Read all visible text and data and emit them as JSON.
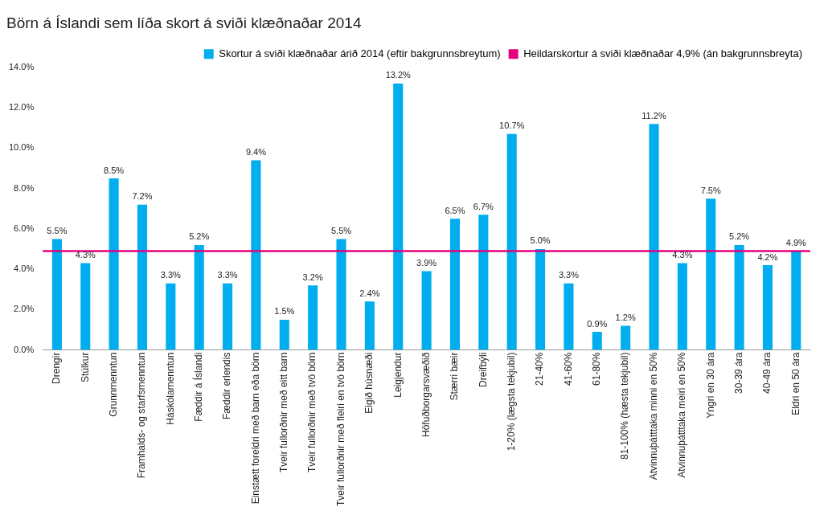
{
  "chart_data": {
    "type": "bar",
    "title": "Börn á Íslandi sem líða skort á sviði klæðnaðar 2014",
    "categories": [
      "Drengir",
      "Stúlkur",
      "Grunnmenntun",
      "Framhalds- og starfsmenntun",
      "Háskólamenntun",
      "Fæddir á Íslandi",
      "Fæddir erlendis",
      "Einstætt foreldri með barn eða börn",
      "Tveir fullorðnir með eitt barn",
      "Tveir fullorðnir með tvö börn",
      "Tveir fullorðnir með fleiri en tvö börn",
      "Eigið húsnæði",
      "Leigjendur",
      "Höfuðborgarsvæðið",
      "Stærri bæir",
      "Dreifbýli",
      "1-20% (lægsta tekjubil)",
      "21-40%",
      "41-60%",
      "61-80%",
      "81-100% (hæsta tekjubil)",
      "Atvinnuþátttaka minni en 50%",
      "Atvinnuþátttaka meiri en 50%",
      "Yngri en 30 ára",
      "30-39 ára",
      "40-49 ára",
      "Eldri en 50 ára"
    ],
    "series": [
      {
        "name": "Skortur á sviði klæðnaðar árið 2014 (eftir bakgrunnsbreytum)",
        "color": "#00aeef",
        "values": [
          5.5,
          4.3,
          8.5,
          7.2,
          3.3,
          5.2,
          3.3,
          9.4,
          1.5,
          3.2,
          5.5,
          2.4,
          13.2,
          3.9,
          6.5,
          6.7,
          10.7,
          5.0,
          3.3,
          0.9,
          1.2,
          11.2,
          4.3,
          7.5,
          5.2,
          4.2,
          4.9
        ],
        "value_labels": [
          "5.5%",
          "4.3%",
          "8.5%",
          "7.2%",
          "3.3%",
          "5.2%",
          "3.3%",
          "9.4%",
          "1.5%",
          "3.2%",
          "5.5%",
          "2.4%",
          "13.2%",
          "3.9%",
          "6.5%",
          "6.7%",
          "10.7%",
          "5.0%",
          "3.3%",
          "0.9%",
          "1.2%",
          "11.2%",
          "4.3%",
          "7.5%",
          "5.2%",
          "4.2%",
          "4.9%"
        ]
      }
    ],
    "ref_lines": [
      {
        "axis": "y",
        "value": 4.9,
        "label": "Heildarskortur á sviði klæðnaðar 4,9% (án bakgrunnsbreyta)",
        "color": "#e6007e"
      }
    ],
    "ylim": [
      0,
      14
    ],
    "yticks": [
      {
        "value": 0,
        "label": "0.0%"
      },
      {
        "value": 2,
        "label": "2.0%"
      },
      {
        "value": 4,
        "label": "4.0%"
      },
      {
        "value": 6,
        "label": "6.0%"
      },
      {
        "value": 8,
        "label": "8.0%"
      },
      {
        "value": 10,
        "label": "10.0%"
      },
      {
        "value": 12,
        "label": "12.0%"
      },
      {
        "value": 14,
        "label": "14.0%"
      }
    ],
    "grid": false,
    "legend": "top right"
  }
}
